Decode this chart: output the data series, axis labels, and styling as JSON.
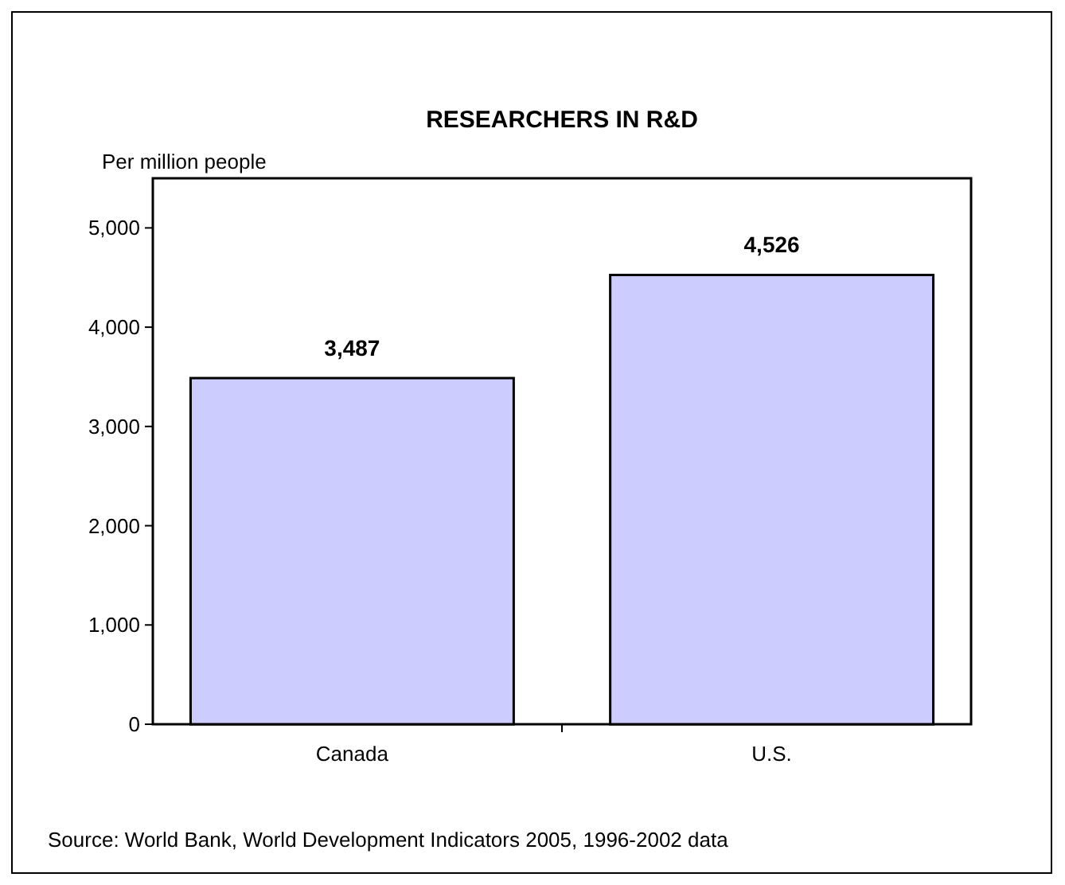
{
  "chart_data": {
    "type": "bar",
    "title": "RESEARCHERS IN R&D",
    "ylabel": "Per million people",
    "categories": [
      "Canada",
      "U.S."
    ],
    "values": [
      3487,
      4526
    ],
    "value_labels": [
      "3,487",
      "4,526"
    ],
    "color": "#ccccff",
    "ylim": [
      0,
      5500
    ],
    "yticks": [
      0,
      {
        "value": 1000,
        "label": "1,000"
      },
      {
        "value": 2000,
        "label": "2,000"
      },
      {
        "value": 3000,
        "label": "3,000"
      },
      {
        "value": 4000,
        "label": "4,000"
      },
      {
        "value": 5000,
        "label": "5,000"
      }
    ],
    "grid": false,
    "annotations": [
      "Source: World Bank, World Development Indicators 2005, 1996-2002 data"
    ]
  }
}
